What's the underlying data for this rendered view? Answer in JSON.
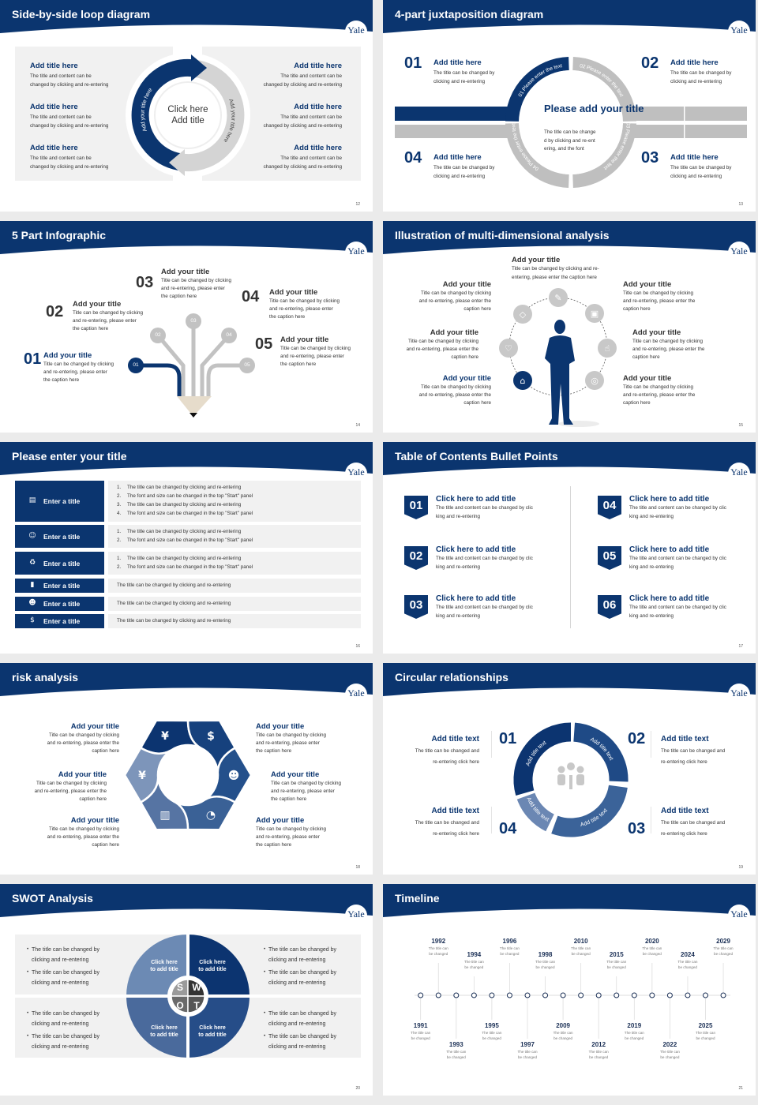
{
  "brand": {
    "logo": "Yale",
    "navy": "#0b356f",
    "panel_gray": "#f1f1f1",
    "ring_gray": "#bfbfbf"
  },
  "slides": {
    "loop": {
      "title": "Side-by-side loop diagram",
      "page": "12",
      "center": "Click here\nAdd title",
      "arc_left": "Add your title here",
      "arc_right": "Add your title here",
      "items": [
        {
          "title": "Add title here",
          "body": "The title and content can be\nchanged by clicking and re-entering"
        },
        {
          "title": "Add title here",
          "body": "The title and content can be\nchanged by clicking and re-entering"
        },
        {
          "title": "Add title here",
          "body": "The title and content can be\nchanged by clicking and re-entering"
        },
        {
          "title": "Add title here",
          "body": "The title and content can be\nchanged by clicking and re-entering"
        },
        {
          "title": "Add title here",
          "body": "The title and content can be\nchanged by clicking and re-entering"
        },
        {
          "title": "Add title here",
          "body": "The title and content can be\nchanged by clicking and re-entering"
        }
      ]
    },
    "juxta": {
      "title": "4-part juxtaposition diagram",
      "page": "13",
      "center_title": "Please add\nyour title",
      "center_body": "The title can be change\nd by clicking and re-ent\nering, and the font",
      "ring": [
        "01 Please enter the text",
        "02 Please enter the text",
        "03 Please enter the text",
        "04 Please enter the text"
      ],
      "items": [
        {
          "num": "01",
          "title": "Add title here",
          "body": "The title can be changed by\nclicking and re-entering"
        },
        {
          "num": "02",
          "title": "Add title here",
          "body": "The title can be changed by\nclicking and re-entering"
        },
        {
          "num": "03",
          "title": "Add title here",
          "body": "The title can be changed by\nclicking and re-entering"
        },
        {
          "num": "04",
          "title": "Add title here",
          "body": "The title can be changed by\nclicking and re-entering"
        }
      ]
    },
    "five": {
      "title": "5 Part Infographic",
      "page": "14",
      "items": [
        {
          "num": "01",
          "title": "Add your title",
          "body": "Title can be changed by clicking\nand re-entering, please enter\nthe caption here"
        },
        {
          "num": "02",
          "title": "Add your title",
          "body": "Title can be changed by clicking\nand re-entering, please enter\nthe caption here"
        },
        {
          "num": "03",
          "title": "Add your title",
          "body": "Title can be changed by clicking\nand re-entering, please enter\nthe caption here"
        },
        {
          "num": "04",
          "title": "Add your title",
          "body": "Title can be changed by clicking\nand re-entering, please enter\nthe caption here"
        },
        {
          "num": "05",
          "title": "Add your title",
          "body": "Title can be changed by clicking\nand re-entering, please enter\nthe caption here"
        }
      ]
    },
    "multi": {
      "title": "Illustration of multi-dimensional analysis",
      "page": "15",
      "top": {
        "title": "Add your title",
        "body": "Title can be changed by clicking and re-\nentering, please enter the caption here"
      },
      "items": [
        {
          "title": "Add your title",
          "body": "Title can be changed by clicking\nand re-entering, please enter the\ncaption here"
        },
        {
          "title": "Add your title",
          "body": "Title can be changed by clicking\nand re-entering, please enter the\ncaption here"
        },
        {
          "title": "Add your title",
          "body": "Title can be changed by clicking\nand re-entering, please enter the\ncaption here"
        },
        {
          "title": "Add your title",
          "body": "Title can be changed by clicking\nand re-entering, please enter the\ncaption here"
        },
        {
          "title": "Add your title",
          "body": "Title can be changed by clicking\nand re-entering, please enter the\ncaption here"
        },
        {
          "title": "Add your title",
          "body": "Title can be changed by clicking\nand re-entering, please enter the\ncaption here"
        }
      ],
      "icons": [
        "bell",
        "diamond",
        "lock",
        "heart",
        "thumbs-up",
        "graduation-cap",
        "globe"
      ]
    },
    "rows": {
      "title": "Please enter your title",
      "page": "16",
      "rows": [
        {
          "icon": "presentation",
          "label": "Enter a title",
          "lines": [
            {
              "n": "1.",
              "text": "The title can be changed by clicking and re-entering"
            },
            {
              "n": "2.",
              "text": "The font and size can be changed in the top \"Start\" panel"
            },
            {
              "n": "3.",
              "text": "The title can be changed by clicking and re-entering"
            },
            {
              "n": "4.",
              "text": "The font and size can be changed in the top \"Start\" panel"
            }
          ]
        },
        {
          "icon": "users",
          "label": "Enter a title",
          "lines": [
            {
              "n": "1.",
              "text": "The title can be changed by clicking and re-entering"
            },
            {
              "n": "2.",
              "text": "The font and size can be changed in the top \"Start\" panel"
            }
          ]
        },
        {
          "icon": "refresh",
          "label": "Enter a title",
          "lines": [
            {
              "n": "1.",
              "text": "The title can be changed by clicking and re-entering"
            },
            {
              "n": "2.",
              "text": "The font and size can be changed in the top \"Start\" panel"
            }
          ]
        },
        {
          "icon": "bar-chart",
          "label": "Enter a title",
          "lines": [
            {
              "n": "",
              "text": "The title can be changed by clicking and re-entering"
            }
          ]
        },
        {
          "icon": "team",
          "label": "Enter a title",
          "lines": [
            {
              "n": "",
              "text": "The title can be changed by clicking and re-entering"
            }
          ]
        },
        {
          "icon": "money-hand",
          "label": "Enter a title",
          "lines": [
            {
              "n": "",
              "text": "The title can be changed by clicking and re-entering"
            }
          ]
        }
      ]
    },
    "toc": {
      "title": "Table of Contents Bullet Points",
      "page": "17",
      "items": [
        {
          "num": "01",
          "title": "Click here to add title",
          "body": "The title and content can be changed by clic\nking and re-entering"
        },
        {
          "num": "02",
          "title": "Click here to add title",
          "body": "The title and content can be changed by clic\nking and re-entering"
        },
        {
          "num": "03",
          "title": "Click here to add title",
          "body": "The title and content can be changed by clic\nking and re-entering"
        },
        {
          "num": "04",
          "title": "Click here to add title",
          "body": "The title and content can be changed by clic\nking and re-entering"
        },
        {
          "num": "05",
          "title": "Click here to add title",
          "body": "The title and content can be changed by clic\nking and re-entering"
        },
        {
          "num": "06",
          "title": "Click here to add title",
          "body": "The title and content can be changed by clic\nking and re-entering"
        }
      ]
    },
    "risk": {
      "title": "risk analysis",
      "page": "18",
      "items": [
        {
          "title": "Add your title",
          "body": "Title can be changed by clicking\nand re-entering, please enter the\ncaption here"
        },
        {
          "title": "Add your title",
          "body": "Title can be changed by clicking\nand re-entering, please enter the\ncaption here"
        },
        {
          "title": "Add your title",
          "body": "Title can be changed by clicking\nand re-entering, please enter the\ncaption here"
        },
        {
          "title": "Add your title",
          "body": "Title can be changed by clicking\nand re-entering, please enter\nthe caption here"
        },
        {
          "title": "Add your title",
          "body": "Title can be changed by clicking\nand re-entering, please enter\nthe caption here"
        },
        {
          "title": "Add your title",
          "body": "Title can be changed by clicking\nand re-entering, please enter\nthe caption here"
        }
      ],
      "icons": [
        "money-bag",
        "coins",
        "users",
        "pie-chart",
        "building",
        "yen-hand"
      ]
    },
    "circ": {
      "title": "Circular relationships",
      "page": "19",
      "ring": [
        "Add title text",
        "Add title text",
        "Add title text",
        "Add title text"
      ],
      "items": [
        {
          "num": "01",
          "title": "Add title text",
          "body": "The title can be changed and\nre-entering click here"
        },
        {
          "num": "02",
          "title": "Add title text",
          "body": "The title can be changed and\nre-entering click here"
        },
        {
          "num": "03",
          "title": "Add title text",
          "body": "The title can be changed and\nre-entering click here"
        },
        {
          "num": "04",
          "title": "Add title text",
          "body": "The title can be changed and\nre-entering click here"
        }
      ]
    },
    "swot": {
      "title": "SWOT Analysis",
      "page": "20",
      "letters": [
        "S",
        "W",
        "O",
        "T"
      ],
      "quadrants": [
        "Click here\nto add title",
        "Click here\nto add title",
        "Click here\nto add title",
        "Click here\nto add title"
      ],
      "bullets": [
        [
          "The title can be changed by\nclicking and re-entering",
          "The title can be changed by\nclicking and re-entering"
        ],
        [
          "The title can be changed by\nclicking and re-entering",
          "The title can be changed by\nclicking and re-entering"
        ],
        [
          "The title can be changed by\nclicking and re-entering",
          "The title can be changed by\nclicking and re-entering"
        ],
        [
          "The title can be changed by\nclicking and re-entering",
          "The title can be changed by\nclicking and re-entering"
        ]
      ]
    },
    "timeline": {
      "title": "Timeline",
      "page": "21",
      "events": [
        {
          "year": "1991",
          "text": "The title can\nbe changed"
        },
        {
          "year": "1992",
          "text": "The title can\nbe changed"
        },
        {
          "year": "1993",
          "text": "The title can\nbe changed"
        },
        {
          "year": "1994",
          "text": "The title can\nbe changed"
        },
        {
          "year": "1995",
          "text": "The title can\nbe changed"
        },
        {
          "year": "1996",
          "text": "The title can\nbe changed"
        },
        {
          "year": "1997",
          "text": "The title can\nbe changed"
        },
        {
          "year": "1998",
          "text": "The title can\nbe changed"
        },
        {
          "year": "2009",
          "text": "The title can\nbe changed"
        },
        {
          "year": "2010",
          "text": "The title can\nbe changed"
        },
        {
          "year": "2012",
          "text": "The title can\nbe changed"
        },
        {
          "year": "2015",
          "text": "The title can\nbe changed"
        },
        {
          "year": "2019",
          "text": "The title can\nbe changed"
        },
        {
          "year": "2020",
          "text": "The title can\nbe changed"
        },
        {
          "year": "2022",
          "text": "The title can\nbe changed"
        },
        {
          "year": "2024",
          "text": "The title can\nbe changed"
        },
        {
          "year": "2025",
          "text": "The title can\nbe changed"
        },
        {
          "year": "2029",
          "text": "The title can\nbe changed"
        }
      ]
    }
  }
}
